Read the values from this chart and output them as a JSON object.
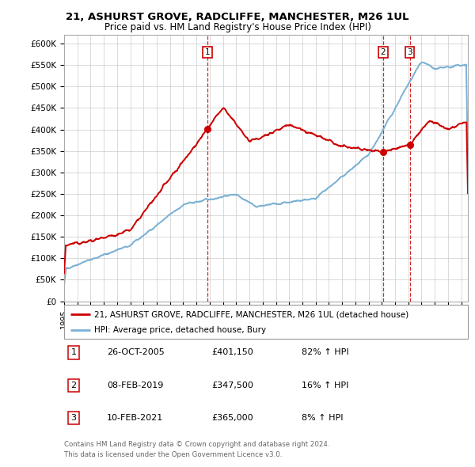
{
  "title_line1": "21, ASHURST GROVE, RADCLIFFE, MANCHESTER, M26 1UL",
  "title_line2": "Price paid vs. HM Land Registry's House Price Index (HPI)",
  "ylabel_ticks": [
    "£0",
    "£50K",
    "£100K",
    "£150K",
    "£200K",
    "£250K",
    "£300K",
    "£350K",
    "£400K",
    "£450K",
    "£500K",
    "£550K",
    "£600K"
  ],
  "ytick_values": [
    0,
    50000,
    100000,
    150000,
    200000,
    250000,
    300000,
    350000,
    400000,
    450000,
    500000,
    550000,
    600000
  ],
  "ylim": [
    0,
    620000
  ],
  "xlim_start": 1995.0,
  "xlim_end": 2025.5,
  "color_red": "#cc0000",
  "color_blue": "#7ab0d4",
  "legend_label1": "21, ASHURST GROVE, RADCLIFFE, MANCHESTER, M26 1UL (detached house)",
  "legend_label2": "HPI: Average price, detached house, Bury",
  "sale1_date": 2005.82,
  "sale1_price": 401150,
  "sale1_label": "1",
  "sale2_date": 2019.1,
  "sale2_price": 347500,
  "sale2_label": "2",
  "sale3_date": 2021.12,
  "sale3_price": 365000,
  "sale3_label": "3",
  "table_rows": [
    [
      "1",
      "26-OCT-2005",
      "£401,150",
      "82% ↑ HPI"
    ],
    [
      "2",
      "08-FEB-2019",
      "£347,500",
      "16% ↑ HPI"
    ],
    [
      "3",
      "10-FEB-2021",
      "£365,000",
      "8% ↑ HPI"
    ]
  ],
  "footer_text": "Contains HM Land Registry data © Crown copyright and database right 2024.\nThis data is licensed under the Open Government Licence v3.0.",
  "background_color": "#ffffff",
  "grid_color": "#cccccc"
}
